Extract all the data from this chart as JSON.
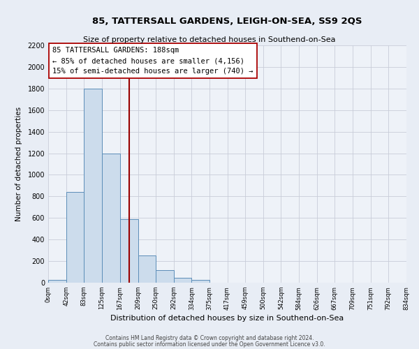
{
  "title": "85, TATTERSALL GARDENS, LEIGH-ON-SEA, SS9 2QS",
  "subtitle": "Size of property relative to detached houses in Southend-on-Sea",
  "xlabel": "Distribution of detached houses by size in Southend-on-Sea",
  "ylabel": "Number of detached properties",
  "bar_edges": [
    0,
    42,
    83,
    125,
    167,
    209,
    250,
    292,
    334,
    375,
    417,
    459,
    500,
    542,
    584,
    626,
    667,
    709,
    751,
    792,
    834
  ],
  "bar_heights": [
    25,
    840,
    1800,
    1200,
    590,
    255,
    115,
    45,
    25,
    0,
    0,
    0,
    0,
    0,
    0,
    0,
    0,
    0,
    0,
    0
  ],
  "bar_color": "#ccdcec",
  "bar_edge_color": "#5b8db8",
  "grid_color": "#c8ccd8",
  "background_color": "#e8edf5",
  "axes_background": "#eef2f8",
  "vline_x": 188,
  "vline_color": "#990000",
  "annotation_line1": "85 TATTERSALL GARDENS: 188sqm",
  "annotation_line2": "← 85% of detached houses are smaller (4,156)",
  "annotation_line3": "15% of semi-detached houses are larger (740) →",
  "annotation_box_facecolor": "#ffffff",
  "annotation_box_edgecolor": "#aa0000",
  "ylim": [
    0,
    2200
  ],
  "yticks": [
    0,
    200,
    400,
    600,
    800,
    1000,
    1200,
    1400,
    1600,
    1800,
    2000,
    2200
  ],
  "xtick_labels": [
    "0sqm",
    "42sqm",
    "83sqm",
    "125sqm",
    "167sqm",
    "209sqm",
    "250sqm",
    "292sqm",
    "334sqm",
    "375sqm",
    "417sqm",
    "459sqm",
    "500sqm",
    "542sqm",
    "584sqm",
    "626sqm",
    "667sqm",
    "709sqm",
    "751sqm",
    "792sqm",
    "834sqm"
  ],
  "footer1": "Contains HM Land Registry data © Crown copyright and database right 2024.",
  "footer2": "Contains public sector information licensed under the Open Government Licence v3.0."
}
